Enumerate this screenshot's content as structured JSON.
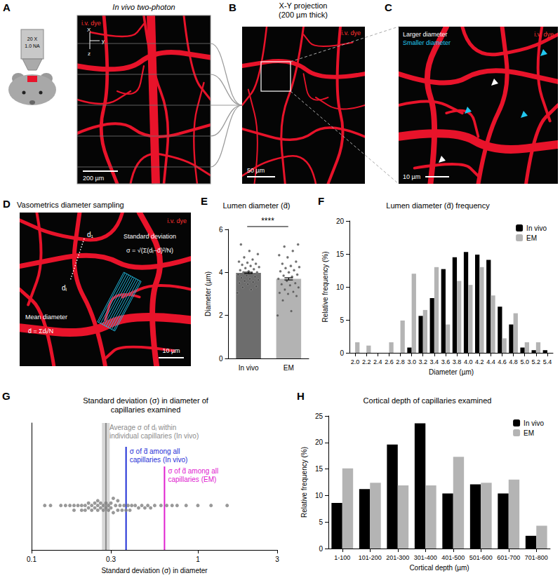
{
  "images": [
    {
      "letter": "A",
      "title": "In vivo two-photon",
      "objective": [
        "20 X",
        "1.0 NA"
      ],
      "axes": [
        "X",
        "y",
        "z"
      ],
      "dye": "i.v. dye",
      "scale_bar": "200 µm"
    },
    {
      "letter": "B",
      "title": "X-Y projection\n(200 µm thick)",
      "dye": "i.v. dye",
      "scale_bar": "50 µm"
    },
    {
      "letter": "C",
      "dye": "i.v. dye",
      "scale_bar": "10 µm",
      "markers": [
        {
          "label": "Larger diameter",
          "color": "#ffffff"
        },
        {
          "label": "Smaller diameter",
          "color": "#22c8f0"
        }
      ]
    },
    {
      "letter": "D",
      "title": "Vasometrics diameter sampling",
      "dye": "i.v. dye",
      "scale_bar": "10 µm",
      "labels": [
        "Standard deviation",
        "Mean diameter"
      ],
      "formulas": [
        "σ = √(Σ(dᵢ−d̄)²/N)",
        "d̄ = Σdᵢ/N"
      ],
      "sample_labels": [
        "d₁",
        "dᵢ"
      ]
    }
  ],
  "chart_data": [
    {
      "letter": "E",
      "type": "bar",
      "title": "Lumen diameter (d̄)",
      "categories": [
        "In vivo",
        "EM"
      ],
      "values": [
        3.98,
        3.7
      ],
      "errors": [
        0.03,
        0.05
      ],
      "colors": [
        "#6d6d6d",
        "#b3b3b3"
      ],
      "points": [
        [
          3.05,
          3.2,
          3.3,
          3.35,
          3.45,
          3.5,
          3.55,
          3.6,
          3.65,
          3.7,
          3.75,
          3.8,
          3.85,
          3.9,
          3.95,
          4.0,
          4.0,
          4.05,
          4.1,
          4.15,
          4.2,
          4.25,
          4.3,
          4.35,
          4.4,
          4.45,
          4.5,
          4.6,
          4.7,
          4.85,
          5.0,
          5.3
        ],
        [
          2.0,
          2.2,
          2.7,
          2.9,
          3.0,
          3.05,
          3.1,
          3.2,
          3.3,
          3.4,
          3.45,
          3.5,
          3.6,
          3.7,
          3.8,
          3.85,
          3.9,
          4.0,
          4.05,
          4.1,
          4.2,
          4.25,
          4.3,
          4.4,
          4.5,
          4.7,
          4.8,
          5.0,
          5.2,
          5.3
        ]
      ],
      "ylim": [
        0,
        6
      ],
      "yticks": [
        0,
        2,
        4,
        6
      ],
      "ylabel": "Diameter (µm)",
      "annotations": [
        "****"
      ],
      "grid": false
    },
    {
      "letter": "F",
      "type": "bar",
      "title": "Lumen diameter (d̄) frequency",
      "categories": [
        "2.0",
        "2.2",
        "2.4",
        "2.6",
        "2.8",
        "3.0",
        "3.2",
        "3.4",
        "3.6",
        "3.8",
        "4.0",
        "4.2",
        "4.4",
        "4.6",
        "4.8",
        "5.0",
        "5.2",
        "5.4"
      ],
      "series": [
        {
          "name": "In vivo",
          "color": "#000000",
          "values": [
            0,
            0,
            0,
            0,
            0,
            0.8,
            5.6,
            8.3,
            12.7,
            14.5,
            15.3,
            14.9,
            14.1,
            7.0,
            4.3,
            0.8,
            0.4,
            0.4
          ]
        },
        {
          "name": "EM",
          "color": "#b4b4b4",
          "values": [
            1.6,
            1.1,
            0,
            1.6,
            4.9,
            12.0,
            6.5,
            13.0,
            4.3,
            10.9,
            10.3,
            13.0,
            8.7,
            2.2,
            6.0,
            1.6,
            1.6,
            0
          ]
        }
      ],
      "ylim": [
        0,
        20
      ],
      "yticks": [
        0,
        5,
        10,
        15,
        20
      ],
      "xlabel": "Diameter (µm)",
      "ylabel": "Relative frequency (%)",
      "legend": "top-right",
      "grid": false
    },
    {
      "letter": "G",
      "type": "scatter",
      "title": "Standard deviation (σ) in diameter of\ncapillaries examined",
      "values": [
        0.12,
        0.13,
        0.15,
        0.16,
        0.17,
        0.18,
        0.18,
        0.19,
        0.2,
        0.2,
        0.21,
        0.21,
        0.22,
        0.22,
        0.23,
        0.23,
        0.24,
        0.24,
        0.25,
        0.25,
        0.25,
        0.26,
        0.26,
        0.27,
        0.27,
        0.28,
        0.28,
        0.29,
        0.29,
        0.3,
        0.3,
        0.31,
        0.31,
        0.32,
        0.33,
        0.33,
        0.34,
        0.35,
        0.36,
        0.37,
        0.38,
        0.39,
        0.4,
        0.42,
        0.44,
        0.46,
        0.48,
        0.5,
        0.52,
        0.55,
        0.6,
        0.65,
        0.7,
        0.75,
        0.85,
        1.0,
        1.2,
        1.5
      ],
      "color": "#808080",
      "log": "x",
      "xlim": [
        0.1,
        3
      ],
      "xticks": [
        0.1,
        0.3,
        1,
        3
      ],
      "xlabel": "Standard deviation (σ) in diameter",
      "tick_labels": "x",
      "grid": false,
      "lines": [
        {
          "value": 0.28,
          "label": "Average σ of dᵢ within\nindividual capillaries (In vivo)",
          "color": "#8c8c8c"
        },
        {
          "value": 0.37,
          "label": "σ of d̄ among all\ncapillaries (In vivo)",
          "color": "#1f2fd6"
        },
        {
          "value": 0.63,
          "label": "σ of d̄ among all\ncapillaries (EM)",
          "color": "#e020d0"
        }
      ],
      "band": [
        0.265,
        0.295
      ]
    },
    {
      "letter": "H",
      "type": "bar",
      "title": "Cortical depth of capillaries examined",
      "categories": [
        "1-100",
        "101-200",
        "201-300",
        "301-400",
        "401-500",
        "501-600",
        "601-700",
        "701-800"
      ],
      "series": [
        {
          "name": "In vivo",
          "color": "#000000",
          "values": [
            8.6,
            11.2,
            19.6,
            23.6,
            10.4,
            12.1,
            10.4,
            2.4
          ]
        },
        {
          "name": "EM",
          "color": "#b4b4b4",
          "values": [
            15.1,
            12.4,
            11.9,
            11.9,
            17.3,
            12.4,
            13.0,
            4.3
          ]
        }
      ],
      "ylim": [
        0,
        25
      ],
      "yticks": [
        0,
        5,
        10,
        15,
        20,
        25
      ],
      "xlabel": "Cortical depth (µm)",
      "ylabel": "Relative frequency (%)",
      "legend": "top-right",
      "grid": false
    }
  ]
}
